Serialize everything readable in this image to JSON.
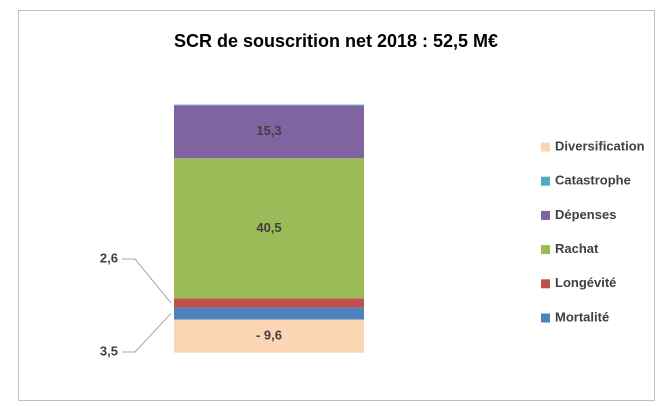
{
  "chart_data": {
    "type": "bar",
    "stacked": true,
    "title": "SCR de souscrition net 2018 : 52,5 M€",
    "categories": [
      null
    ],
    "series": [
      {
        "name": "Mortalité",
        "color": "#4f81bd",
        "values": [
          3.5
        ],
        "value_labels": [
          "3,5"
        ]
      },
      {
        "name": "Longévité",
        "color": "#c0504d",
        "values": [
          2.6
        ],
        "value_labels": [
          "2,6"
        ]
      },
      {
        "name": "Rachat",
        "color": "#9bbb59",
        "values": [
          40.5
        ],
        "value_labels": [
          "40,5"
        ]
      },
      {
        "name": "Dépenses",
        "color": "#8064a2",
        "values": [
          15.3
        ],
        "value_labels": [
          "15,3"
        ]
      },
      {
        "name": "Catastrophe",
        "color": "#4bacc6",
        "values": [
          0.2
        ]
      },
      {
        "name": "Diversification",
        "color": "#fcd5b4",
        "values": [
          -9.6
        ],
        "value_labels": [
          "- 9,6"
        ]
      }
    ],
    "legend": "right"
  }
}
